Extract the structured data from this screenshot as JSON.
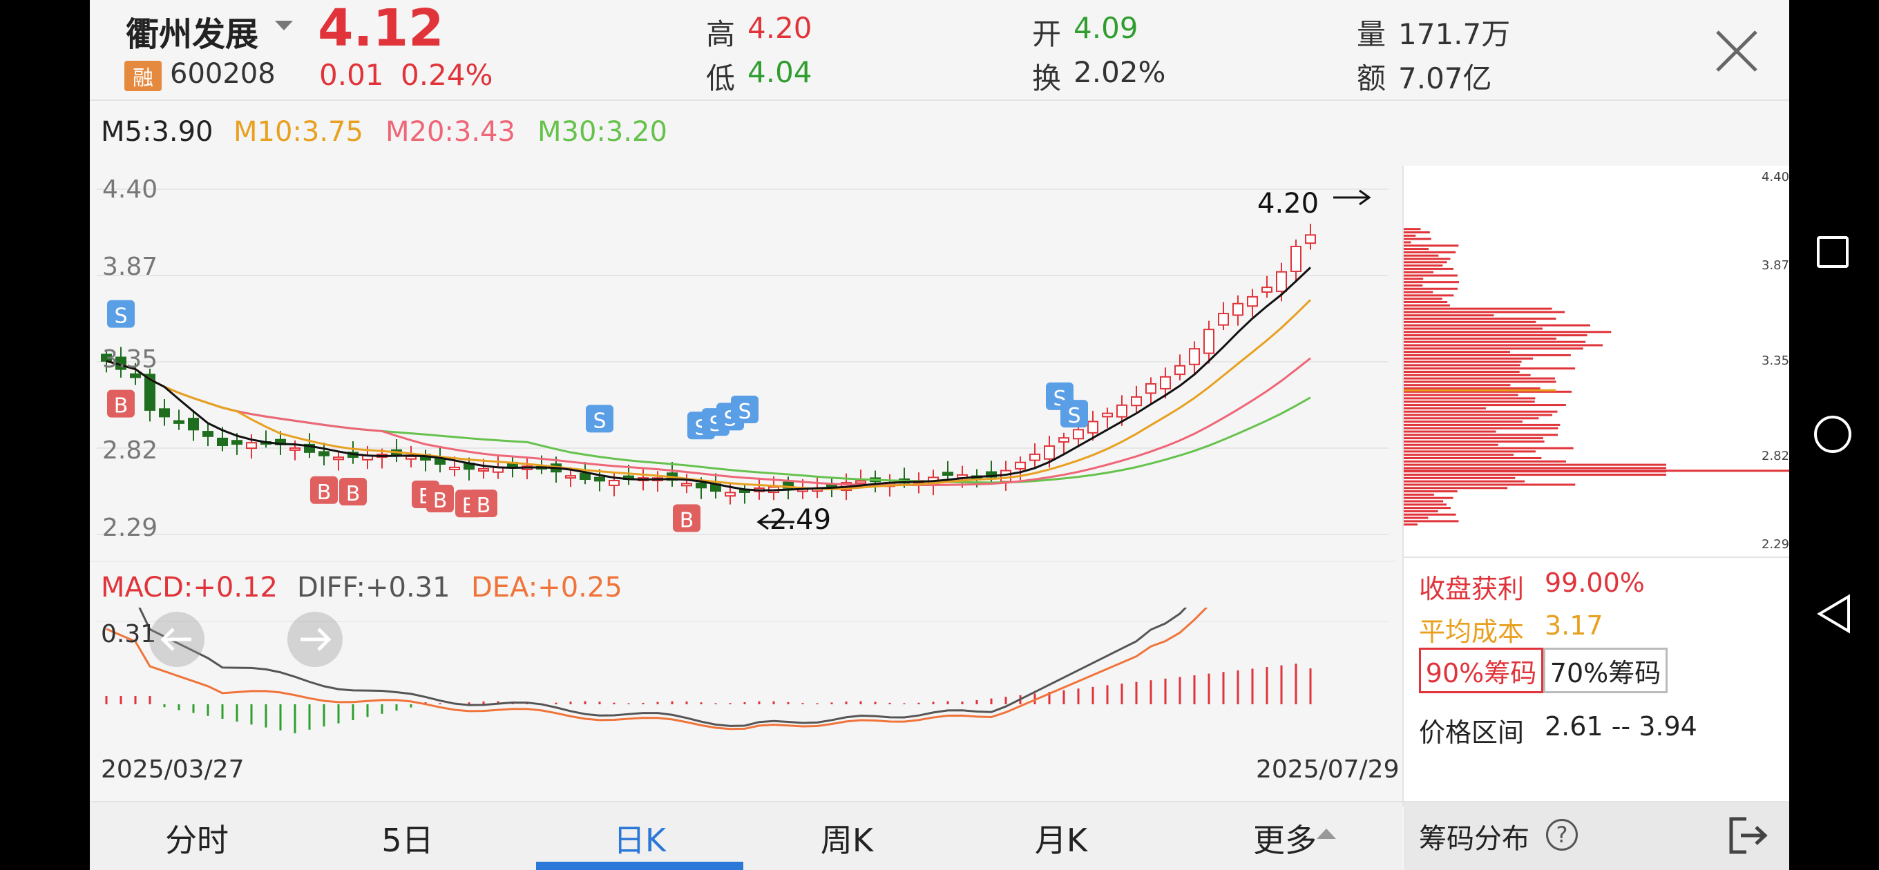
{
  "header": {
    "stock_name": "衢州发展",
    "price": "4.12",
    "margin_badge": "融",
    "code": "600208",
    "change": "0.01",
    "change_pct": "0.24%",
    "high_label": "高",
    "high": "4.20",
    "low_label": "低",
    "low": "4.04",
    "open_label": "开",
    "open": "4.09",
    "turnover_label": "换",
    "turnover": "2.02%",
    "volume_label": "量",
    "volume": "171.7万",
    "amount_label": "额",
    "amount": "7.07亿"
  },
  "ma_legend": {
    "m5": "M5:3.90",
    "m10": "M10:3.75",
    "m20": "M20:3.43",
    "m30": "M30:3.20"
  },
  "price_axis": [
    "4.40",
    "3.87",
    "3.35",
    "2.82",
    "2.29"
  ],
  "markers": {
    "high": "4.20",
    "low": "2.49",
    "buy": "B",
    "sell": "S"
  },
  "macd": {
    "macd": "MACD:+0.12",
    "diff": "DIFF:+0.31",
    "dea": "DEA:+0.25",
    "axis_top": "0.31"
  },
  "dates": {
    "start": "2025/03/27",
    "end": "2025/07/29"
  },
  "chip_panel": {
    "axis": [
      "4.40",
      "3.87",
      "3.35",
      "2.82",
      "2.29"
    ],
    "profit_label": "收盘获利",
    "profit_value": "99.00%",
    "avg_cost_label": "平均成本",
    "avg_cost_value": "3.17",
    "btn_90": "90%筹码",
    "btn_70": "70%筹码",
    "range_label": "价格区间",
    "range_value": "2.61 -- 3.94"
  },
  "tabs": [
    "分时",
    "5日",
    "日K",
    "周K",
    "月K",
    "更多"
  ],
  "active_tab": "日K",
  "chip_tab": "筹码分布",
  "colors": {
    "up": "#e0343a",
    "down": "#1f6e1f",
    "m5": "#111111",
    "m10": "#e8a020",
    "m20": "#ee6677",
    "m30": "#66c24d",
    "accent": "#2b78d8",
    "diff": "#555555",
    "dea": "#f0743a"
  },
  "chart_data": {
    "type": "candlestick",
    "y_range": [
      2.29,
      4.4
    ],
    "date_range": [
      "2025/03/27",
      "2025/07/29"
    ],
    "moving_averages": {
      "M5": 3.9,
      "M10": 3.75,
      "M20": 3.43,
      "M30": 3.2
    },
    "high_marker": 4.2,
    "low_marker": 2.49,
    "macd": {
      "MACD": 0.12,
      "DIFF": 0.31,
      "DEA": 0.25
    },
    "chip_distribution": {
      "closing_profit_pct": 99.0,
      "average_cost": 3.17,
      "price_range_90": [
        2.61,
        3.94
      ]
    }
  }
}
